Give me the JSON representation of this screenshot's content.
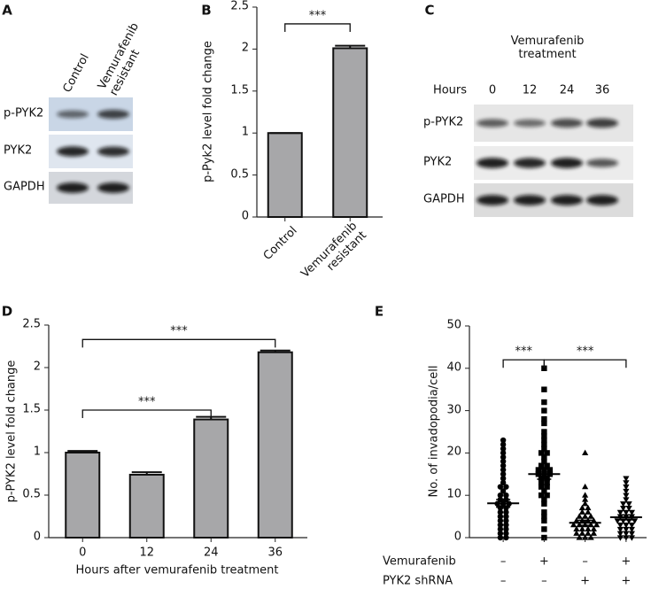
{
  "blots": [
    {
      "label": "A",
      "columns": [
        "Control",
        "Vemurafenib\nresistant"
      ],
      "rows": [
        "p-PYK2",
        "PYK2",
        "GAPDH"
      ]
    },
    {
      "label": "C",
      "title": "Vemurafenib\ntreatment",
      "header": "Hours",
      "columns": [
        "0",
        "12",
        "24",
        "36"
      ],
      "rows": [
        "p-PYK2",
        "PYK2",
        "GAPDH"
      ]
    }
  ],
  "chart_data": [
    {
      "label": "B",
      "type": "bar",
      "ylabel": "p-Pyk2 level fold change",
      "categories": [
        "Control",
        "Vemurafenib\nresistant"
      ],
      "values": [
        1,
        2.01
      ],
      "errors": [
        0,
        0.03
      ],
      "color": "#a7a7a9",
      "ylim": [
        0,
        2.5
      ],
      "yticks": [
        0,
        0.5,
        1,
        1.5,
        2,
        2.5
      ],
      "annotations": [
        {
          "text": "***",
          "between": [
            0,
            1
          ],
          "y": 2.3
        }
      ]
    },
    {
      "label": "D",
      "type": "bar",
      "ylabel": "p-PYK2 level fold change",
      "xlabel": "Hours after vemurafenib treatment",
      "categories": [
        "0",
        "12",
        "24",
        "36"
      ],
      "values": [
        1,
        0.74,
        1.39,
        2.18
      ],
      "errors": [
        0.02,
        0.03,
        0.03,
        0.02
      ],
      "color": "#a7a7a9",
      "ylim": [
        0,
        2.5
      ],
      "yticks": [
        0,
        0.5,
        1,
        1.5,
        2,
        2.5
      ],
      "annotations": [
        {
          "text": "***",
          "between": [
            0,
            3
          ],
          "y": 2.33
        },
        {
          "text": "***",
          "between": [
            0,
            2
          ],
          "y": 1.5
        }
      ]
    },
    {
      "label": "E",
      "type": "dot",
      "ylabel": "No. of invadopodia/cell",
      "color": "#000000",
      "ylim": [
        0,
        50
      ],
      "yticks": [
        0,
        10,
        20,
        30,
        40,
        50
      ],
      "series": [
        {
          "marker": "circle",
          "mean": 8.1,
          "sem": 0.9,
          "values": [
            0,
            0,
            1,
            1,
            2,
            2,
            3,
            3,
            4,
            4,
            5,
            5,
            6,
            6,
            7,
            7,
            8,
            8,
            8,
            9,
            9,
            10,
            10,
            11,
            12,
            12,
            13,
            14,
            15,
            16,
            17,
            18,
            19,
            20,
            21,
            22,
            23
          ]
        },
        {
          "marker": "square",
          "mean": 15,
          "sem": 1.2,
          "values": [
            0,
            2,
            4,
            5,
            6,
            8,
            9,
            10,
            10,
            11,
            12,
            12,
            13,
            13,
            14,
            14,
            15,
            15,
            15,
            16,
            16,
            16,
            17,
            17,
            18,
            19,
            20,
            20,
            21,
            22,
            23,
            24,
            25,
            27,
            28,
            30,
            32,
            35,
            40
          ]
        },
        {
          "marker": "triangle-up",
          "mean": 3.5,
          "sem": 0.6,
          "values": [
            0,
            0,
            0,
            1,
            1,
            1,
            1,
            2,
            2,
            2,
            2,
            3,
            3,
            3,
            3,
            3,
            4,
            4,
            4,
            4,
            5,
            5,
            5,
            6,
            6,
            7,
            7,
            8,
            9,
            10,
            12,
            20
          ]
        },
        {
          "marker": "triangle-down",
          "mean": 4.8,
          "sem": 0.6,
          "values": [
            0,
            0,
            0,
            1,
            1,
            1,
            2,
            2,
            2,
            3,
            3,
            3,
            4,
            4,
            4,
            4,
            5,
            5,
            5,
            6,
            6,
            6,
            7,
            7,
            8,
            8,
            9,
            10,
            11,
            12,
            13,
            14
          ]
        }
      ],
      "conditions": [
        {
          "name": "Vemurafenib",
          "values": [
            "–",
            "+",
            "–",
            "+"
          ]
        },
        {
          "name": "PYK2 shRNA",
          "values": [
            "–",
            "–",
            "+",
            "+"
          ]
        }
      ],
      "annotations": [
        {
          "text": "***",
          "between": [
            0,
            1
          ],
          "y": 42
        },
        {
          "text": "***",
          "between": [
            1,
            3
          ],
          "y": 42
        }
      ]
    }
  ]
}
